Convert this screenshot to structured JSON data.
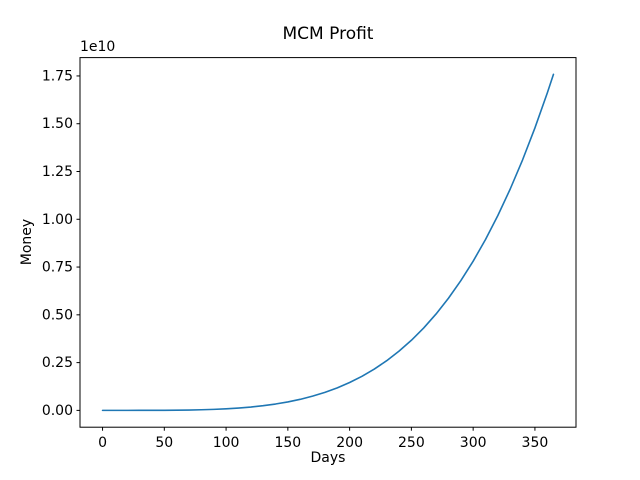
{
  "chart_data": {
    "type": "line",
    "title": "MCM Profit",
    "xlabel": "Days",
    "ylabel": "Money",
    "y_axis_offset_text": "1e10",
    "grid": false,
    "legend": false,
    "background_color": "#ffffff",
    "line_color": "#1f77b4",
    "spine_color": "#000000",
    "x_ticks": [
      0,
      50,
      100,
      150,
      200,
      250,
      300,
      350
    ],
    "y_tick_values": [
      0.0,
      0.25,
      0.5,
      0.75,
      1.0,
      1.25,
      1.5,
      1.75
    ],
    "y_tick_labels": [
      "0.00",
      "0.25",
      "0.50",
      "0.75",
      "1.00",
      "1.25",
      "1.50",
      "1.75"
    ],
    "xlim": [
      -18.25,
      383.25
    ],
    "ylim_1e10": [
      -0.088,
      1.846
    ],
    "y_unit_multiplier": 10000000000,
    "series": [
      {
        "x_days": [
          0,
          10,
          20,
          30,
          40,
          50,
          60,
          70,
          80,
          90,
          100,
          110,
          120,
          130,
          140,
          150,
          160,
          170,
          180,
          190,
          200,
          210,
          220,
          230,
          240,
          250,
          260,
          270,
          280,
          290,
          300,
          310,
          320,
          330,
          340,
          350,
          360,
          365
        ],
        "y_1e10": [
          0.0,
          0.0,
          0.0,
          0.0001,
          0.0002,
          0.0005,
          0.001,
          0.0019,
          0.0033,
          0.0053,
          0.0083,
          0.0123,
          0.0176,
          0.0245,
          0.0333,
          0.0443,
          0.0578,
          0.0744,
          0.0943,
          0.1178,
          0.1458,
          0.1783,
          0.2161,
          0.2599,
          0.31,
          0.3668,
          0.4315,
          0.5046,
          0.5868,
          0.6785,
          0.7807,
          0.8943,
          1.0198,
          1.1584,
          1.3108,
          1.4779,
          1.6607,
          1.7583
        ]
      }
    ]
  }
}
